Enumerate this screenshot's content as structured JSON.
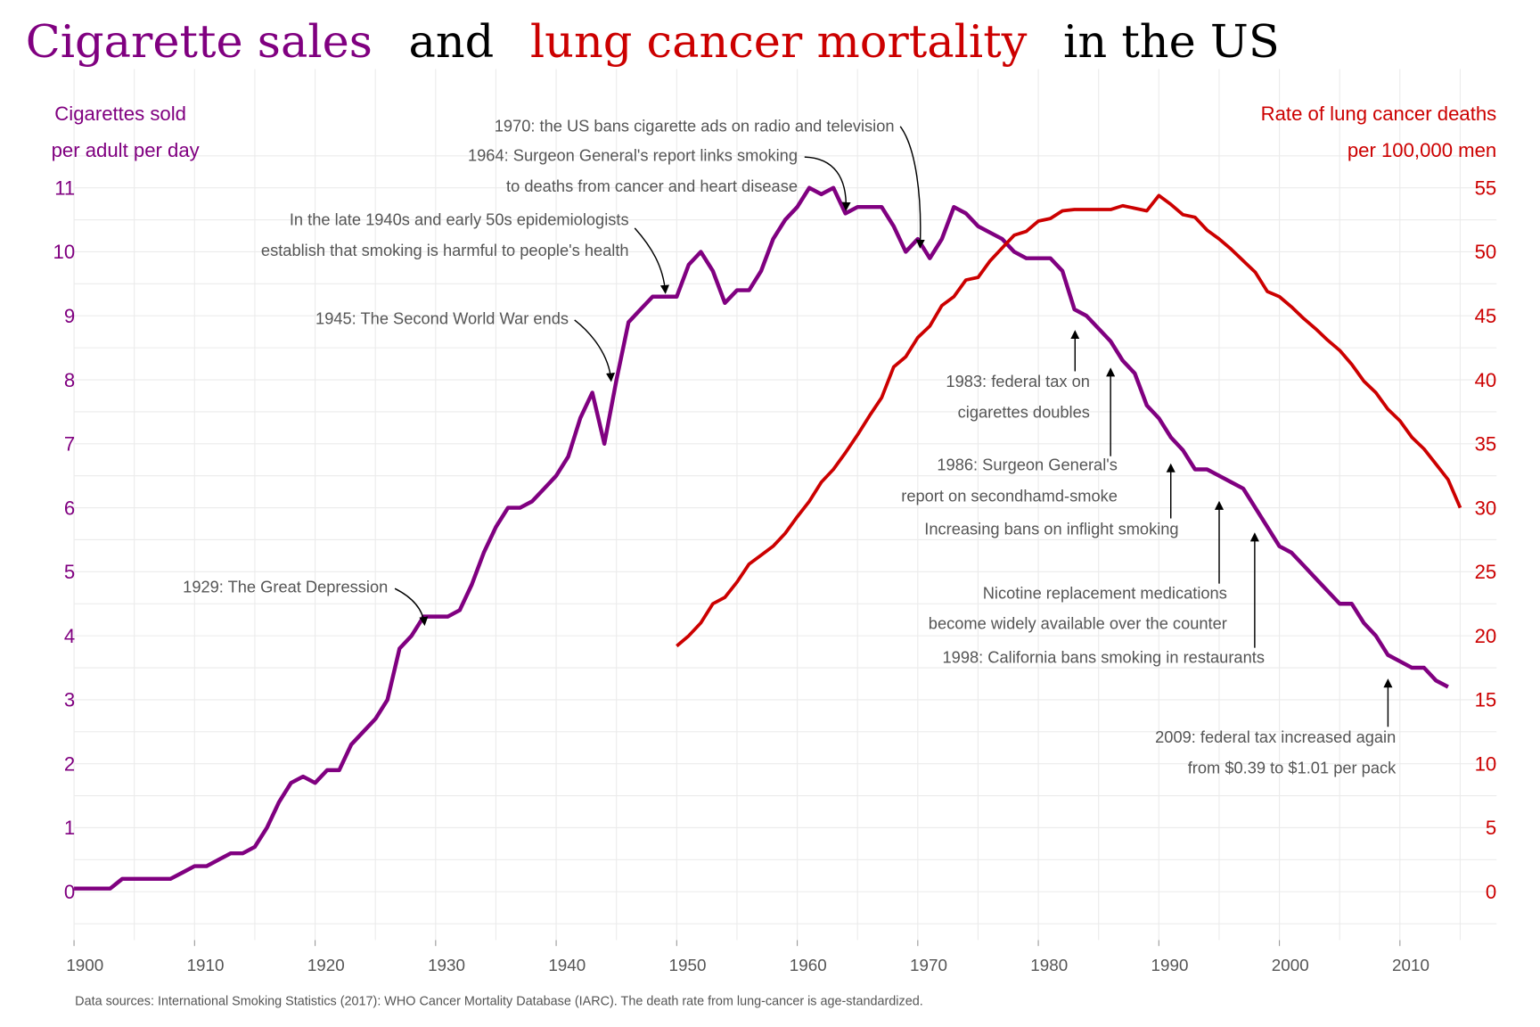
{
  "title": {
    "part1": "Cigarette sales",
    "part2": "and",
    "part3": "lung cancer mortality",
    "part4": "in the US"
  },
  "footer": "Data sources: International Smoking Statistics (2017): WHO Cancer Mortality Database (IARC). The death rate from lung-cancer is age-standardized.",
  "colors": {
    "cigarettes": "#800080",
    "lung": "#cc0000",
    "text": "#555555",
    "grid": "#ebebeb"
  },
  "chart_data": {
    "type": "line",
    "title": "Cigarette sales and lung cancer mortality in the US",
    "xlim": [
      1900,
      2015
    ],
    "x_ticks": [
      "1900",
      "1910",
      "1920",
      "1930",
      "1940",
      "1950",
      "1960",
      "1970",
      "1980",
      "1990",
      "2000",
      "2010"
    ],
    "y_left": {
      "label_line1": "Cigarettes sold",
      "label_line2": "per adult per day",
      "ylim": [
        0,
        11
      ],
      "ticks": [
        "0",
        "1",
        "2",
        "3",
        "4",
        "5",
        "6",
        "7",
        "8",
        "9",
        "10",
        "11"
      ]
    },
    "y_right": {
      "label_line1": "Rate of lung cancer deaths",
      "label_line2": "per 100,000 men",
      "ylim": [
        0,
        55
      ],
      "ticks": [
        "0",
        "5",
        "10",
        "15",
        "20",
        "25",
        "30",
        "35",
        "40",
        "45",
        "50",
        "55"
      ]
    },
    "grid": true,
    "series": [
      {
        "name": "Cigarette sales",
        "axis": "left",
        "x_start": 1900,
        "values": [
          0.05,
          0.05,
          0.05,
          0.05,
          0.2,
          0.2,
          0.2,
          0.2,
          0.2,
          0.3,
          0.4,
          0.4,
          0.5,
          0.6,
          0.6,
          0.7,
          1.0,
          1.4,
          1.7,
          1.8,
          1.7,
          1.9,
          1.9,
          2.3,
          2.5,
          2.7,
          3.0,
          3.8,
          4.0,
          4.3,
          4.3,
          4.3,
          4.4,
          4.8,
          5.3,
          5.7,
          6.0,
          6.0,
          6.1,
          6.3,
          6.5,
          6.8,
          7.4,
          7.8,
          7.0,
          8.0,
          8.9,
          9.1,
          9.3,
          9.3,
          9.3,
          9.8,
          10.0,
          9.7,
          9.2,
          9.4,
          9.4,
          9.7,
          10.2,
          10.5,
          10.7,
          11.0,
          10.9,
          11.0,
          10.6,
          10.7,
          10.7,
          10.7,
          10.4,
          10.0,
          10.2,
          9.9,
          10.2,
          10.7,
          10.6,
          10.4,
          10.3,
          10.2,
          10.0,
          9.9,
          9.9,
          9.9,
          9.7,
          9.1,
          9.0,
          8.8,
          8.6,
          8.3,
          8.1,
          7.6,
          7.4,
          7.1,
          6.9,
          6.6,
          6.6,
          6.5,
          6.4,
          6.3,
          6.0,
          5.7,
          5.4,
          5.3,
          5.1,
          4.9,
          4.7,
          4.5,
          4.5,
          4.2,
          4.0,
          3.7,
          3.6,
          3.5,
          3.5,
          3.3,
          3.2
        ]
      },
      {
        "name": "Lung cancer mortality",
        "axis": "right",
        "x_start": 1950,
        "values": [
          19.2,
          20,
          21,
          22.5,
          23,
          24.2,
          25.6,
          26.3,
          27,
          28,
          29.3,
          30.5,
          32,
          33,
          34.3,
          35.7,
          37.2,
          38.6,
          41,
          41.8,
          43.3,
          44.2,
          45.8,
          46.5,
          47.8,
          48.0,
          49.3,
          50.3,
          51.3,
          51.6,
          52.4,
          52.6,
          53.2,
          53.3,
          53.3,
          53.3,
          53.3,
          53.6,
          53.4,
          53.2,
          54.4,
          53.7,
          52.9,
          52.7,
          51.7,
          51.0,
          50.2,
          49.3,
          48.4,
          46.9,
          46.5,
          45.7,
          44.8,
          44.0,
          43.1,
          42.3,
          41.2,
          39.9,
          39.0,
          37.7,
          36.8,
          35.5,
          34.6,
          33.4,
          32.2,
          30.0
        ]
      }
    ],
    "annotations": [
      {
        "lines": [
          "1970: the US bans cigarette ads on radio and television"
        ],
        "year": 1970
      },
      {
        "lines": [
          "1964: Surgeon General's report links smoking",
          "to deaths from cancer and heart disease"
        ],
        "year": 1964
      },
      {
        "lines": [
          "In the late 1940s and early 50s epidemiologists",
          "establish that smoking is harmful to people's health"
        ],
        "year": 1949
      },
      {
        "lines": [
          "1945: The Second World War ends"
        ],
        "year": 1945
      },
      {
        "lines": [
          "1929: The Great Depression"
        ],
        "year": 1929
      },
      {
        "lines": [
          "1983: federal tax on",
          "cigarettes doubles"
        ],
        "year": 1983
      },
      {
        "lines": [
          "1986: Surgeon General's",
          "report on secondhamd-smoke"
        ],
        "year": 1986
      },
      {
        "lines": [
          "Increasing bans on inflight smoking"
        ],
        "year": 1991
      },
      {
        "lines": [
          "Nicotine replacement medications",
          "become widely available over the counter"
        ],
        "year": 1995
      },
      {
        "lines": [
          "1998: California bans smoking in restaurants"
        ],
        "year": 1998
      },
      {
        "lines": [
          "2009: federal tax increased again",
          "from $0.39 to $1.01 per pack"
        ],
        "year": 2009
      }
    ]
  }
}
